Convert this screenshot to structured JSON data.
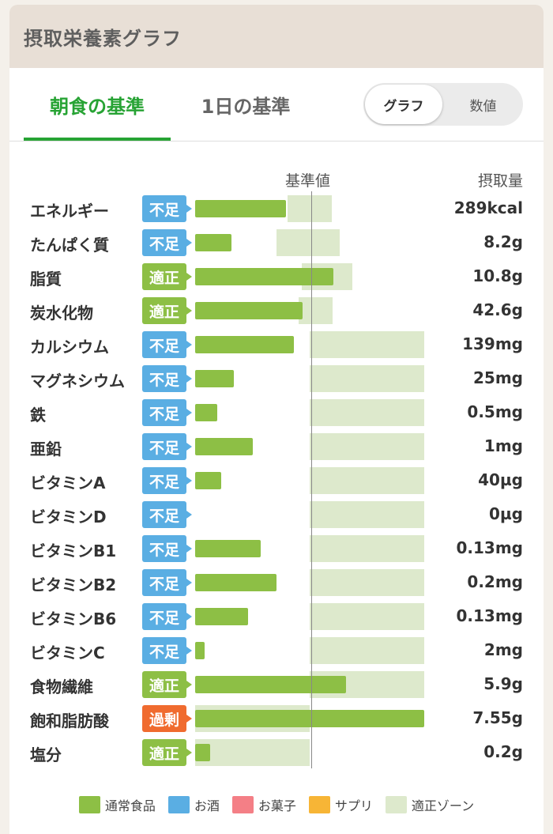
{
  "header": {
    "title": "摂取栄養素グラフ"
  },
  "tabs": [
    {
      "label": "朝食の基準",
      "active": true
    },
    {
      "label": "1日の基準",
      "active": false
    }
  ],
  "toggle": {
    "options": [
      "グラフ",
      "数値"
    ],
    "selected": "グラフ"
  },
  "columns": {
    "reference": "基準値",
    "intake": "摂取量"
  },
  "status_colors": {
    "不足": "#5aaee3",
    "適正": "#8dbf45",
    "過剰": "#f06b2f"
  },
  "nutrients": [
    {
      "name": "エネルギー",
      "status": "不足",
      "value": "289kcal",
      "level": 0.79,
      "zone": [
        0.81,
        1.19
      ]
    },
    {
      "name": "たんぱく質",
      "status": "不足",
      "value": "8.2g",
      "level": 0.32,
      "zone": [
        0.71,
        1.26
      ]
    },
    {
      "name": "脂質",
      "status": "適正",
      "value": "10.8g",
      "level": 1.21,
      "zone": [
        0.93,
        1.37
      ]
    },
    {
      "name": "炭水化物",
      "status": "適正",
      "value": "42.6g",
      "level": 0.94,
      "zone": [
        0.9,
        1.2
      ]
    },
    {
      "name": "カルシウム",
      "status": "不足",
      "value": "139mg",
      "level": 0.86,
      "zone": [
        1.0,
        2.0
      ]
    },
    {
      "name": "マグネシウム",
      "status": "不足",
      "value": "25mg",
      "level": 0.34,
      "zone": [
        1.0,
        2.0
      ]
    },
    {
      "name": "鉄",
      "status": "不足",
      "value": "0.5mg",
      "level": 0.19,
      "zone": [
        1.0,
        2.0
      ]
    },
    {
      "name": "亜鉛",
      "status": "不足",
      "value": "1mg",
      "level": 0.5,
      "zone": [
        1.0,
        2.0
      ]
    },
    {
      "name": "ビタミンA",
      "status": "不足",
      "value": "40µg",
      "level": 0.23,
      "zone": [
        1.0,
        2.0
      ]
    },
    {
      "name": "ビタミンD",
      "status": "不足",
      "value": "0µg",
      "level": 0.0,
      "zone": [
        1.0,
        2.0
      ]
    },
    {
      "name": "ビタミンB1",
      "status": "不足",
      "value": "0.13mg",
      "level": 0.57,
      "zone": [
        1.0,
        2.0
      ]
    },
    {
      "name": "ビタミンB2",
      "status": "不足",
      "value": "0.2mg",
      "level": 0.71,
      "zone": [
        1.0,
        2.0
      ]
    },
    {
      "name": "ビタミンB6",
      "status": "不足",
      "value": "0.13mg",
      "level": 0.46,
      "zone": [
        1.0,
        2.0
      ]
    },
    {
      "name": "ビタミンC",
      "status": "不足",
      "value": "2mg",
      "level": 0.08,
      "zone": [
        1.0,
        2.0
      ]
    },
    {
      "name": "食物繊維",
      "status": "適正",
      "value": "5.9g",
      "level": 1.32,
      "zone": [
        1.0,
        2.0
      ]
    },
    {
      "name": "飽和脂肪酸",
      "status": "過剰",
      "value": "7.55g",
      "level": 2.0,
      "zone": [
        0.0,
        1.0
      ]
    },
    {
      "name": "塩分",
      "status": "適正",
      "value": "0.2g",
      "level": 0.13,
      "zone": [
        0.0,
        1.0
      ]
    }
  ],
  "legend": [
    {
      "label": "通常食品",
      "color": "#8dbf45"
    },
    {
      "label": "お酒",
      "color": "#5aaee3"
    },
    {
      "label": "お菓子",
      "color": "#f47f86"
    },
    {
      "label": "サプリ",
      "color": "#f7b536"
    },
    {
      "label": "適正ゾーン",
      "color": "#dde9cc"
    }
  ]
}
